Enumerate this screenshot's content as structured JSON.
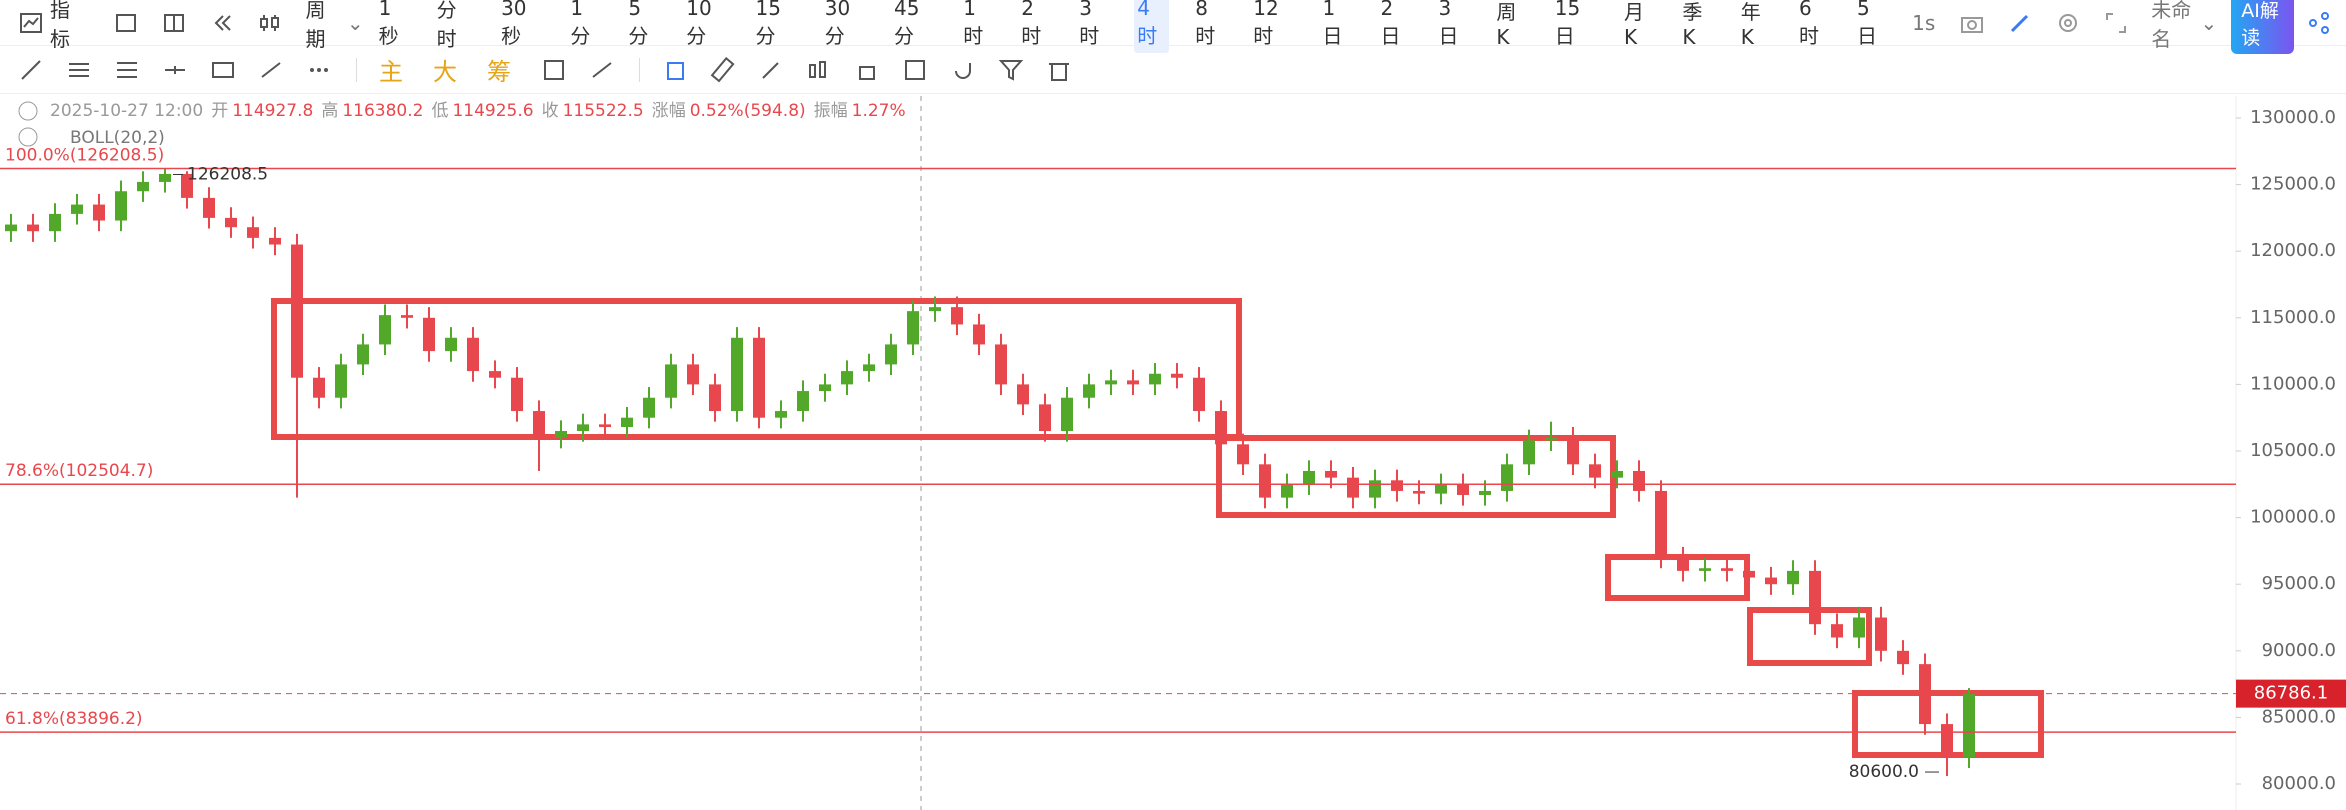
{
  "toolbar": {
    "indicator": "指标",
    "period": "周期",
    "periods": [
      "1秒",
      "分时",
      "30秒",
      "1分",
      "5分",
      "10分",
      "15分",
      "30分",
      "45分",
      "1时",
      "2时",
      "3时",
      "4时",
      "8时",
      "12时",
      "1日",
      "2日",
      "3日",
      "周K",
      "15日",
      "月K",
      "季K",
      "年K",
      "6时",
      "5日"
    ],
    "active_period": "4时",
    "speed": "1s",
    "workspace": "未命名",
    "ai": "AI解读"
  },
  "tools": [
    "主",
    "大",
    "筹"
  ],
  "header": {
    "datetime": "2025-10-27 12:00",
    "fields": [
      {
        "label": "开",
        "value": 114927.8
      },
      {
        "label": "高",
        "value": 116380.2
      },
      {
        "label": "低",
        "value": 114925.6
      },
      {
        "label": "收",
        "value": 115522.5
      },
      {
        "label": "涨幅",
        "value": "0.52%(594.8)"
      },
      {
        "label": "振幅",
        "value": "1.27%"
      }
    ],
    "indicator": "BOLL(20,2)"
  },
  "chart_data": {
    "type": "candlestick",
    "up_color": "#52a829",
    "down_color": "#e8484d",
    "grid": false,
    "open": [
      121500,
      122000,
      121500,
      122800,
      123500,
      122300,
      124500,
      125200,
      125800,
      124000,
      122500,
      121800,
      121000,
      120500,
      110500,
      109000,
      111500,
      113000,
      115200,
      115000,
      112500,
      113500,
      111000,
      110500,
      108000,
      106000,
      106500,
      107000,
      106800,
      107500,
      109000,
      111500,
      110000,
      108000,
      113500,
      107500,
      108000,
      109500,
      110000,
      111000,
      111500,
      113000,
      115500,
      115800,
      114500,
      113000,
      110000,
      108500,
      106500,
      109000,
      110000,
      110300,
      110000,
      110800,
      110500,
      108000,
      105500,
      104000,
      101500,
      102500,
      103500,
      103000,
      101500,
      102800,
      102000,
      101800,
      102500,
      101700,
      102000,
      104000,
      105800,
      106000,
      104000,
      103000,
      103500,
      102000,
      97000,
      96000,
      96200,
      96000,
      95500,
      95000,
      96000,
      92000,
      91000,
      92500,
      90000,
      89000,
      84500,
      82000
    ],
    "high": [
      122800,
      122800,
      123600,
      124300,
      124300,
      125300,
      126000,
      126208.5,
      126000,
      124800,
      123300,
      122600,
      121800,
      121300,
      111300,
      112300,
      113800,
      116000,
      116000,
      115800,
      114300,
      114300,
      111800,
      111300,
      108800,
      107300,
      107800,
      107800,
      108300,
      109800,
      112300,
      112300,
      110800,
      114300,
      114300,
      108800,
      110300,
      110800,
      111800,
      112300,
      113800,
      116300,
      116600,
      116600,
      115300,
      113800,
      110800,
      109300,
      109800,
      110800,
      111100,
      111100,
      111600,
      111600,
      111300,
      108800,
      106300,
      104800,
      103300,
      104300,
      104300,
      103800,
      103600,
      103600,
      102800,
      103300,
      103300,
      102800,
      104800,
      106600,
      107200,
      106800,
      104800,
      104300,
      104300,
      102800,
      97800,
      97000,
      97000,
      96800,
      96300,
      96800,
      96800,
      92800,
      93300,
      93300,
      90800,
      89800,
      85300,
      87200
    ],
    "low": [
      120700,
      120700,
      120700,
      122000,
      121500,
      121500,
      123700,
      124400,
      123200,
      121700,
      121000,
      120200,
      119700,
      101500,
      108200,
      108200,
      110700,
      112200,
      114200,
      111700,
      111700,
      110200,
      109700,
      107200,
      103500,
      105200,
      105700,
      106000,
      106000,
      106700,
      108200,
      109200,
      107200,
      107200,
      106700,
      106700,
      107200,
      108700,
      109200,
      110200,
      110700,
      112200,
      114700,
      113700,
      112200,
      109200,
      107700,
      105700,
      105700,
      108200,
      109200,
      109200,
      109200,
      109700,
      107200,
      104700,
      103200,
      100700,
      100700,
      101700,
      102200,
      100700,
      100700,
      101200,
      101000,
      101000,
      100900,
      100900,
      101200,
      103200,
      105000,
      103200,
      102200,
      102200,
      101200,
      96200,
      95200,
      95200,
      95200,
      94700,
      94200,
      94200,
      91200,
      90200,
      90200,
      89200,
      88200,
      83700,
      80600,
      81200
    ],
    "close": [
      122000,
      121500,
      122800,
      123500,
      122300,
      124500,
      125200,
      125800,
      124000,
      122500,
      121800,
      121000,
      120500,
      110500,
      109000,
      111500,
      113000,
      115200,
      115000,
      112500,
      113500,
      111000,
      110500,
      108000,
      106000,
      106500,
      107000,
      106800,
      107500,
      109000,
      111500,
      110000,
      108000,
      113500,
      107500,
      108000,
      109500,
      110000,
      111000,
      111500,
      113000,
      115500,
      115800,
      114500,
      113000,
      110000,
      108500,
      106500,
      109000,
      110000,
      110300,
      110000,
      110800,
      110500,
      108000,
      105500,
      104000,
      101500,
      102500,
      103500,
      103000,
      101500,
      102800,
      102000,
      101800,
      102500,
      101700,
      102000,
      104000,
      105800,
      106000,
      104000,
      103000,
      103500,
      102000,
      97000,
      96000,
      96200,
      96000,
      95500,
      95000,
      96000,
      92000,
      91000,
      92500,
      90000,
      89000,
      84500,
      82000,
      86786.1
    ],
    "ylim": [
      78050,
      131650
    ],
    "yticks": [
      {
        "value": 80000,
        "label": "80000.0"
      },
      {
        "value": 85000,
        "label": "85000.0"
      },
      {
        "value": 90000,
        "label": "90000.0"
      },
      {
        "value": 95000,
        "label": "95000.0"
      },
      {
        "value": 100000,
        "label": "100000.0"
      },
      {
        "value": 105000,
        "label": "105000.0"
      },
      {
        "value": 110000,
        "label": "110000.0"
      },
      {
        "value": 115000,
        "label": "115000.0"
      },
      {
        "value": 120000,
        "label": "120000.0"
      },
      {
        "value": 125000,
        "label": "125000.0"
      },
      {
        "value": 130000,
        "label": "130000.0"
      }
    ],
    "fib_levels": [
      {
        "value": 126208.5,
        "label": "100.0%(126208.5)"
      },
      {
        "value": 102504.7,
        "label": "78.6%(102504.7)"
      },
      {
        "value": 83896.2,
        "label": "61.8%(83896.2)"
      }
    ],
    "markers": [
      {
        "value": 126208.5,
        "label": "126208.5"
      },
      {
        "value": 80600,
        "label": "80600.0"
      }
    ]
  }
}
